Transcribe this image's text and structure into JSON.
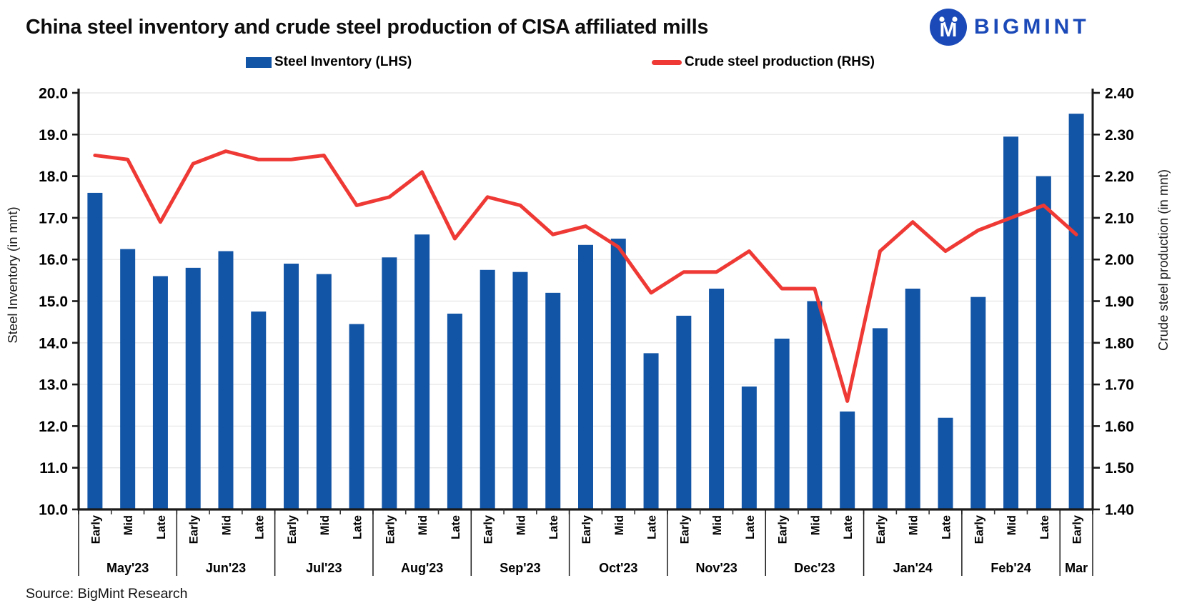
{
  "header": {
    "title": "China steel inventory and crude steel production of CISA affiliated mills",
    "brand": {
      "name": "BIGMINT",
      "color": "#1b4ab8"
    }
  },
  "legend": {
    "items": [
      {
        "label": "Steel Inventory (LHS)",
        "swatch": "bar",
        "color": "#1254a6"
      },
      {
        "label": "Crude steel production (RHS)",
        "swatch": "line",
        "color": "#ee3934"
      }
    ]
  },
  "footer": {
    "source": "Source: BigMint Research"
  },
  "chart_data": {
    "type": "bar+line combo",
    "title": "China steel inventory and crude steel production of CISA affiliated mills",
    "grid": true,
    "legend_position": "top",
    "groups": [
      {
        "label": "May'23",
        "sub": [
          "Early",
          "Mid",
          "Late"
        ]
      },
      {
        "label": "Jun'23",
        "sub": [
          "Early",
          "Mid",
          "Late"
        ]
      },
      {
        "label": "Jul'23",
        "sub": [
          "Early",
          "Mid",
          "Late"
        ]
      },
      {
        "label": "Aug'23",
        "sub": [
          "Early",
          "Mid",
          "Late"
        ]
      },
      {
        "label": "Sep'23",
        "sub": [
          "Early",
          "Mid",
          "Late"
        ]
      },
      {
        "label": "Oct'23",
        "sub": [
          "Early",
          "Mid",
          "Late"
        ]
      },
      {
        "label": "Nov'23",
        "sub": [
          "Early",
          "Mid",
          "Late"
        ]
      },
      {
        "label": "Dec'23",
        "sub": [
          "Early",
          "Mid",
          "Late"
        ]
      },
      {
        "label": "Jan'24",
        "sub": [
          "Early",
          "Mid",
          "Late"
        ]
      },
      {
        "label": "Feb'24",
        "sub": [
          "Early",
          "Mid",
          "Late"
        ]
      },
      {
        "label": "Mar",
        "sub": [
          "Early"
        ]
      }
    ],
    "left_axis": {
      "title": "Steel Inventory (in mnt)",
      "min": 10.0,
      "max": 20.0,
      "step": 1.0,
      "format": "1dp"
    },
    "right_axis": {
      "title": "Crude steel production (in mnt)",
      "min": 1.4,
      "max": 2.4,
      "step": 0.1,
      "format": "2dp"
    },
    "series": [
      {
        "name": "Steel Inventory (LHS)",
        "type": "bar",
        "axis": "left",
        "color": "#1254a6",
        "values": [
          17.6,
          16.25,
          15.6,
          15.8,
          16.2,
          14.75,
          15.9,
          15.65,
          14.45,
          16.05,
          16.6,
          14.7,
          15.75,
          15.7,
          15.2,
          16.35,
          16.5,
          13.75,
          14.65,
          15.3,
          12.95,
          14.1,
          15.0,
          12.35,
          14.35,
          15.3,
          12.2,
          15.1,
          18.95,
          18.0,
          19.5
        ]
      },
      {
        "name": "Crude steel production (RHS)",
        "type": "line",
        "axis": "right",
        "color": "#ee3934",
        "values": [
          2.25,
          2.24,
          2.09,
          2.23,
          2.26,
          2.24,
          2.24,
          2.25,
          2.13,
          2.15,
          2.21,
          2.05,
          2.15,
          2.13,
          2.06,
          2.08,
          2.03,
          1.92,
          1.97,
          1.97,
          2.02,
          1.93,
          1.93,
          1.66,
          2.02,
          2.09,
          2.02,
          2.07,
          2.1,
          2.13,
          2.06
        ]
      }
    ]
  }
}
